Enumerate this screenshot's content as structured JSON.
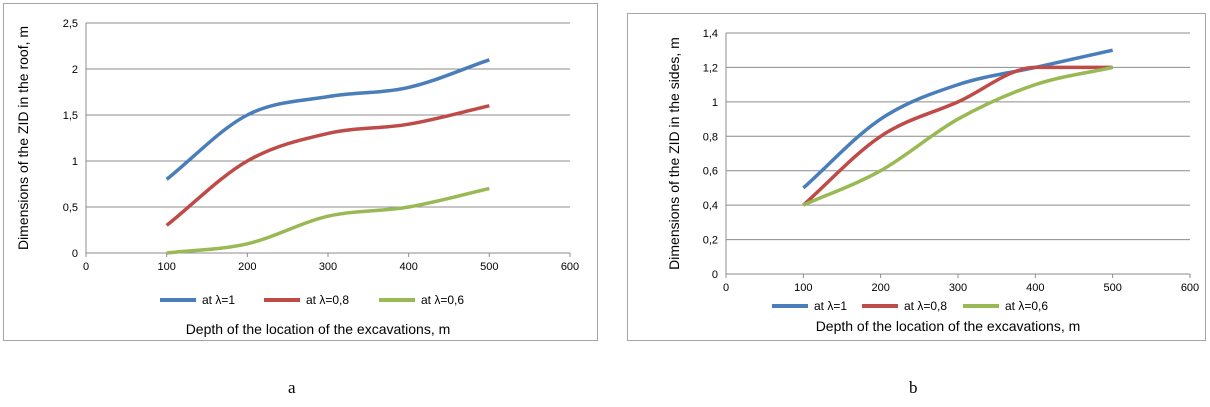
{
  "figure_labels": [
    "a",
    "b"
  ],
  "chart_data": [
    {
      "type": "line",
      "title": "",
      "xlabel": "Depth of the location of the excavations, m",
      "ylabel": "Dimensions of the ZID in the roof, m",
      "xlim": [
        0,
        600
      ],
      "ylim": [
        0,
        2.5
      ],
      "x_ticks": [
        "0",
        "100",
        "200",
        "300",
        "400",
        "500",
        "600"
      ],
      "y_ticks": [
        "0",
        "0,5",
        "1",
        "1,5",
        "2",
        "2,5"
      ],
      "grid": "horizontal",
      "legend": "bottom",
      "x": [
        100,
        200,
        300,
        400,
        500
      ],
      "series": [
        {
          "name": "at λ=1",
          "color": "#4a7ebb",
          "values": [
            0.8,
            1.5,
            1.7,
            1.8,
            2.1
          ]
        },
        {
          "name": "at λ=0,8",
          "color": "#be4b48",
          "values": [
            0.3,
            1.0,
            1.3,
            1.4,
            1.6
          ]
        },
        {
          "name": "at λ=0,6",
          "color": "#98b954",
          "values": [
            0.0,
            0.1,
            0.4,
            0.5,
            0.7
          ]
        }
      ]
    },
    {
      "type": "line",
      "title": "",
      "xlabel": "Depth of the location of the excavations, m",
      "ylabel": "Dimensions of the ZID in the sides, m",
      "xlim": [
        0,
        600
      ],
      "ylim": [
        0,
        1.4
      ],
      "x_ticks": [
        "0",
        "100",
        "200",
        "300",
        "400",
        "500",
        "600"
      ],
      "y_ticks": [
        "0",
        "0,2",
        "0,4",
        "0,6",
        "0,8",
        "1",
        "1,2",
        "1,4"
      ],
      "grid": "horizontal",
      "legend": "bottom",
      "x": [
        100,
        200,
        300,
        400,
        500
      ],
      "series": [
        {
          "name": "at λ=1",
          "color": "#4a7ebb",
          "values": [
            0.5,
            0.9,
            1.1,
            1.2,
            1.3
          ]
        },
        {
          "name": "at λ=0,8",
          "color": "#be4b48",
          "values": [
            0.4,
            0.8,
            1.0,
            1.2,
            1.2
          ]
        },
        {
          "name": "at λ=0,6",
          "color": "#98b954",
          "values": [
            0.4,
            0.6,
            0.9,
            1.1,
            1.2
          ]
        }
      ]
    }
  ]
}
